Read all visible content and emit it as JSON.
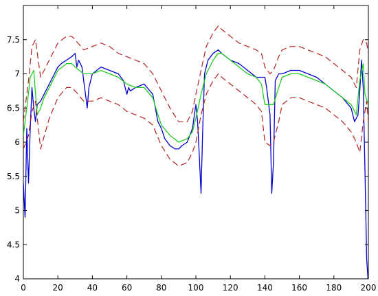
{
  "chart_data": {
    "type": "line",
    "title": "",
    "xlabel": "",
    "ylabel": "",
    "xlim": [
      0,
      200
    ],
    "ylim": [
      4,
      8
    ],
    "xticks": [
      0,
      20,
      40,
      60,
      80,
      100,
      120,
      140,
      160,
      180,
      200
    ],
    "yticks": [
      4,
      4.5,
      5,
      5.5,
      6,
      6.5,
      7,
      7.5
    ],
    "grid": false,
    "legend": "none",
    "colors": {
      "measured": "#0000cc",
      "estimate": "#22cc22",
      "bound": "#b22222",
      "axis": "#000000"
    },
    "series": [
      {
        "style": "solid",
        "color": "#0000cc",
        "x": [
          0,
          1,
          2,
          3,
          4,
          5,
          6,
          7,
          8,
          10,
          12,
          15,
          18,
          20,
          22,
          25,
          28,
          30,
          31,
          32,
          33,
          34,
          35,
          36,
          37,
          38,
          40,
          45,
          50,
          55,
          58,
          59,
          60,
          61,
          62,
          65,
          70,
          75,
          78,
          80,
          82,
          85,
          88,
          90,
          92,
          95,
          98,
          100,
          101,
          102,
          103,
          104,
          105,
          107,
          110,
          113,
          115,
          120,
          125,
          130,
          135,
          140,
          141,
          143,
          144,
          145,
          146,
          148,
          150,
          155,
          160,
          165,
          170,
          175,
          180,
          185,
          190,
          192,
          194,
          195,
          196,
          197,
          198,
          199,
          200
        ],
        "y": [
          5.4,
          4.9,
          6.2,
          5.4,
          6.2,
          6.8,
          6.5,
          6.3,
          6.55,
          6.6,
          6.7,
          6.85,
          7.0,
          7.1,
          7.15,
          7.2,
          7.25,
          7.3,
          7.1,
          7.2,
          7.15,
          7.1,
          6.9,
          6.7,
          6.5,
          6.8,
          7.0,
          7.1,
          7.05,
          7.0,
          6.9,
          6.8,
          6.7,
          6.8,
          6.75,
          6.8,
          6.85,
          6.7,
          6.3,
          6.2,
          6.05,
          5.95,
          5.9,
          5.9,
          5.95,
          6.0,
          6.2,
          6.55,
          6.3,
          5.8,
          5.25,
          6.2,
          7.0,
          7.2,
          7.3,
          7.35,
          7.3,
          7.2,
          7.15,
          7.05,
          6.95,
          6.95,
          6.8,
          6.4,
          5.25,
          5.7,
          6.9,
          7.0,
          7.0,
          7.05,
          7.05,
          7.0,
          6.95,
          6.85,
          6.75,
          6.65,
          6.5,
          6.3,
          6.4,
          6.75,
          7.2,
          6.8,
          5.6,
          4.3,
          3.9
        ]
      },
      {
        "style": "solid",
        "color": "#22cc22",
        "x": [
          0,
          2,
          4,
          6,
          8,
          10,
          12,
          15,
          20,
          25,
          28,
          30,
          35,
          40,
          45,
          50,
          55,
          60,
          65,
          70,
          75,
          78,
          80,
          85,
          90,
          95,
          98,
          100,
          103,
          106,
          110,
          113,
          115,
          120,
          125,
          130,
          135,
          138,
          140,
          142,
          145,
          148,
          150,
          155,
          160,
          165,
          170,
          175,
          180,
          185,
          190,
          193,
          195,
          197,
          198,
          200
        ],
        "y": [
          6.1,
          6.5,
          6.95,
          7.05,
          6.4,
          6.5,
          6.65,
          6.8,
          7.05,
          7.15,
          7.15,
          7.1,
          7.0,
          7.0,
          7.05,
          7.0,
          6.95,
          6.85,
          6.8,
          6.8,
          6.65,
          6.4,
          6.25,
          6.1,
          6.0,
          6.05,
          6.15,
          6.35,
          6.7,
          7.0,
          7.2,
          7.3,
          7.3,
          7.2,
          7.1,
          7.0,
          6.95,
          6.85,
          6.55,
          6.55,
          6.55,
          6.8,
          6.95,
          7.0,
          7.0,
          6.95,
          6.9,
          6.85,
          6.75,
          6.65,
          6.55,
          6.4,
          6.9,
          7.15,
          6.7,
          6.55
        ]
      },
      {
        "style": "dashed",
        "color": "#b22222",
        "x": [
          0,
          3,
          5,
          7,
          10,
          15,
          20,
          25,
          28,
          30,
          35,
          40,
          45,
          50,
          55,
          60,
          65,
          70,
          75,
          80,
          85,
          90,
          95,
          98,
          100,
          103,
          106,
          110,
          113,
          115,
          120,
          125,
          130,
          135,
          138,
          140,
          143,
          145,
          148,
          150,
          155,
          160,
          165,
          170,
          175,
          180,
          185,
          190,
          193,
          195,
          197,
          199,
          200
        ],
        "y": [
          6.3,
          6.9,
          7.4,
          7.5,
          6.95,
          7.2,
          7.45,
          7.55,
          7.55,
          7.5,
          7.35,
          7.4,
          7.45,
          7.4,
          7.3,
          7.25,
          7.2,
          7.15,
          7.0,
          6.75,
          6.5,
          6.3,
          6.3,
          6.45,
          6.7,
          7.05,
          7.4,
          7.6,
          7.7,
          7.65,
          7.55,
          7.45,
          7.4,
          7.35,
          7.3,
          7.1,
          7.0,
          7.05,
          7.25,
          7.35,
          7.4,
          7.4,
          7.35,
          7.3,
          7.25,
          7.15,
          7.05,
          6.95,
          6.8,
          7.35,
          7.5,
          7.45,
          7.3
        ]
      },
      {
        "style": "dashed",
        "color": "#b22222",
        "x": [
          0,
          3,
          5,
          7,
          10,
          15,
          20,
          25,
          28,
          30,
          35,
          40,
          45,
          50,
          55,
          60,
          65,
          70,
          75,
          80,
          85,
          90,
          95,
          98,
          100,
          103,
          106,
          110,
          113,
          115,
          120,
          125,
          130,
          135,
          138,
          140,
          143,
          145,
          148,
          150,
          155,
          160,
          165,
          170,
          175,
          180,
          185,
          190,
          193,
          195,
          197,
          199,
          200
        ],
        "y": [
          5.9,
          6.1,
          6.45,
          6.6,
          5.9,
          6.35,
          6.65,
          6.8,
          6.8,
          6.75,
          6.6,
          6.6,
          6.65,
          6.6,
          6.55,
          6.45,
          6.4,
          6.35,
          6.25,
          5.95,
          5.75,
          5.65,
          5.7,
          5.85,
          6.0,
          6.4,
          6.7,
          6.9,
          7.0,
          6.95,
          6.85,
          6.75,
          6.65,
          6.55,
          6.45,
          6.0,
          5.95,
          6.0,
          6.3,
          6.55,
          6.65,
          6.65,
          6.6,
          6.55,
          6.5,
          6.4,
          6.3,
          6.15,
          6.0,
          5.85,
          6.3,
          6.6,
          6.3
        ]
      }
    ]
  }
}
